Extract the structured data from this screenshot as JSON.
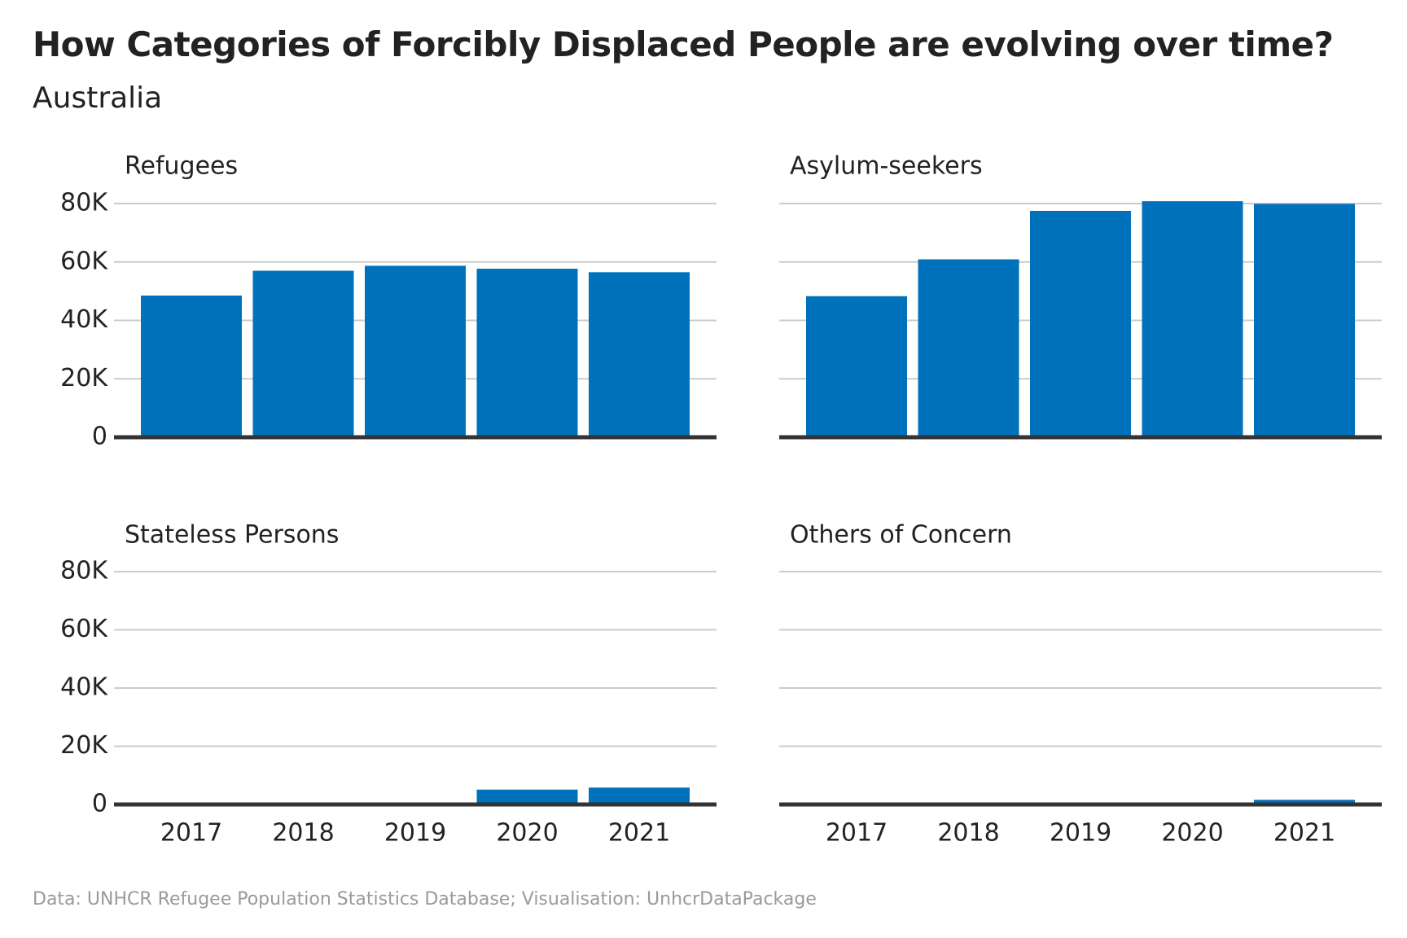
{
  "title": "How Categories of Forcibly Displaced People are evolving over time?",
  "subtitle": "Australia",
  "caption": "Data: UNHCR Refugee Population Statistics Database; Visualisation: UnhcrDataPackage",
  "colors": {
    "bar": "#0072BC",
    "grid": "#CCCCCC",
    "baseline": "#333333",
    "text": "#222222",
    "caption": "#9A9A9A"
  },
  "chart_data": {
    "type": "bar",
    "layout": "small-multiples-2x2",
    "categories": [
      "2017",
      "2018",
      "2019",
      "2020",
      "2021"
    ],
    "ylim": [
      0,
      80000
    ],
    "yticks": [
      0,
      20000,
      40000,
      60000,
      80000
    ],
    "ytick_labels": [
      "0",
      "20K",
      "40K",
      "60K",
      "80K"
    ],
    "grid": true,
    "panels": [
      {
        "name": "Refugees",
        "values": [
          48500,
          57000,
          58700,
          57700,
          56500
        ]
      },
      {
        "name": "Asylum-seekers",
        "values": [
          48300,
          60900,
          77500,
          80800,
          79900
        ]
      },
      {
        "name": "Stateless Persons",
        "values": [
          0,
          0,
          0,
          5100,
          5800
        ]
      },
      {
        "name": "Others of Concern",
        "values": [
          0,
          0,
          0,
          0,
          1600
        ]
      }
    ]
  }
}
